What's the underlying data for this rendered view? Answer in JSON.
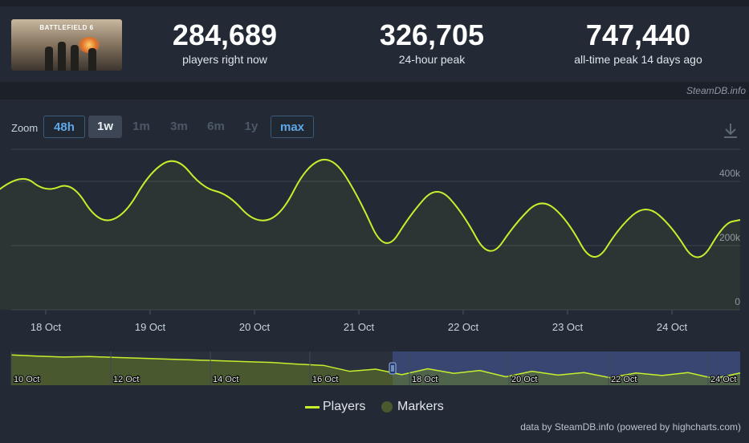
{
  "game": {
    "cover_title": "BATTLEFIELD 6"
  },
  "stats": [
    {
      "value": "284,689",
      "label": "players right now"
    },
    {
      "value": "326,705",
      "label": "24-hour peak"
    },
    {
      "value": "747,440",
      "label": "all-time peak 14 days ago"
    }
  ],
  "credit_top": "SteamDB.info",
  "zoom": {
    "label": "Zoom",
    "buttons": [
      {
        "label": "48h",
        "state": "link"
      },
      {
        "label": "1w",
        "state": "selected"
      },
      {
        "label": "1m",
        "state": "disabled"
      },
      {
        "label": "3m",
        "state": "disabled"
      },
      {
        "label": "6m",
        "state": "disabled"
      },
      {
        "label": "1y",
        "state": "disabled"
      },
      {
        "label": "max",
        "state": "link"
      }
    ]
  },
  "icons": {
    "download": "download-icon"
  },
  "colors": {
    "series": "#c6f02c",
    "navigator_selection": "#3b4a7a",
    "background": "#232a35"
  },
  "chart_data": {
    "type": "line",
    "series": [
      {
        "name": "Players",
        "x": [
          "17 Oct 12:00",
          "17 Oct 18:00",
          "18 Oct 00:00",
          "18 Oct 06:00",
          "18 Oct 12:00",
          "18 Oct 18:00",
          "19 Oct 00:00",
          "19 Oct 06:00",
          "19 Oct 12:00",
          "19 Oct 18:00",
          "20 Oct 00:00",
          "20 Oct 06:00",
          "20 Oct 12:00",
          "20 Oct 18:00",
          "21 Oct 00:00",
          "21 Oct 06:00",
          "21 Oct 12:00",
          "21 Oct 18:00",
          "22 Oct 00:00",
          "22 Oct 06:00",
          "22 Oct 12:00",
          "22 Oct 18:00",
          "23 Oct 00:00",
          "23 Oct 06:00",
          "23 Oct 12:00",
          "23 Oct 18:00",
          "24 Oct 00:00",
          "24 Oct 06:00",
          "24 Oct 12:00",
          "24 Oct 15:00"
        ],
        "values": [
          360000,
          430000,
          365000,
          400000,
          270000,
          290000,
          430000,
          480000,
          380000,
          360000,
          270000,
          290000,
          450000,
          480000,
          350000,
          170000,
          300000,
          390000,
          300000,
          150000,
          270000,
          350000,
          280000,
          130000,
          260000,
          330000,
          260000,
          130000,
          270000,
          280000
        ]
      }
    ],
    "y_ticks": [
      "0",
      "200k",
      "400k"
    ],
    "ylim": [
      0,
      500000
    ],
    "x_ticks": [
      "18 Oct",
      "19 Oct",
      "20 Oct",
      "21 Oct",
      "22 Oct",
      "23 Oct",
      "24 Oct"
    ],
    "navigator": {
      "ticks": [
        "10 Oct",
        "12 Oct",
        "14 Oct",
        "16 Oct",
        "18 Oct",
        "20 Oct",
        "22 Oct",
        "24 Oct"
      ],
      "values": [
        720000,
        690000,
        670000,
        680000,
        660000,
        640000,
        620000,
        600000,
        580000,
        560000,
        540000,
        500000,
        470000,
        330000,
        380000,
        250000,
        390000,
        280000,
        350000,
        200000,
        330000,
        240000,
        300000,
        180000,
        290000,
        230000,
        300000,
        160000,
        290000
      ]
    },
    "legend": [
      "Players",
      "Markers"
    ],
    "legend_position": "bottom",
    "grid": true
  },
  "credit_bottom": "data by SteamDB.info (powered by highcharts.com)"
}
